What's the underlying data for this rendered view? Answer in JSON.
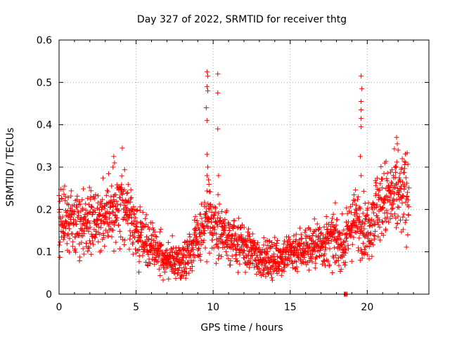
{
  "chart_data": {
    "type": "scatter",
    "title": "Day 327 of 2022, SRMTID for receiver thtg",
    "xlabel": "GPS time / hours",
    "ylabel": "SRMTID / TECUs",
    "xlim": [
      0,
      24
    ],
    "ylim": [
      0,
      0.6
    ],
    "xticks": [
      0,
      5,
      10,
      15,
      20
    ],
    "yticks": [
      0,
      0.1,
      0.2,
      0.3,
      0.4,
      0.5,
      0.6
    ],
    "xtick_labels": [
      "0",
      "5",
      "10",
      "15",
      "20"
    ],
    "ytick_labels": [
      "0",
      "0.1",
      "0.2",
      "0.3",
      "0.4",
      "0.5",
      "0.6"
    ],
    "grid": true,
    "marker": "plus",
    "color": "#ff0000",
    "trend": [
      [
        0.0,
        0.19
      ],
      [
        1.0,
        0.17
      ],
      [
        2.0,
        0.17
      ],
      [
        3.0,
        0.18
      ],
      [
        3.5,
        0.21
      ],
      [
        4.0,
        0.21
      ],
      [
        4.5,
        0.19
      ],
      [
        5.0,
        0.15
      ],
      [
        6.0,
        0.11
      ],
      [
        7.0,
        0.08
      ],
      [
        8.0,
        0.08
      ],
      [
        9.0,
        0.13
      ],
      [
        9.6,
        0.17
      ],
      [
        10.5,
        0.15
      ],
      [
        11.5,
        0.12
      ],
      [
        12.5,
        0.1
      ],
      [
        13.5,
        0.08
      ],
      [
        14.5,
        0.09
      ],
      [
        15.0,
        0.1
      ],
      [
        16.0,
        0.11
      ],
      [
        17.0,
        0.12
      ],
      [
        18.0,
        0.13
      ],
      [
        18.5,
        0.11
      ],
      [
        19.0,
        0.17
      ],
      [
        19.5,
        0.17
      ],
      [
        20.0,
        0.15
      ],
      [
        20.5,
        0.2
      ],
      [
        21.0,
        0.22
      ],
      [
        22.0,
        0.23
      ],
      [
        22.7,
        0.24
      ]
    ],
    "sample_count": 1900,
    "x_range_observed": [
      0.0,
      22.7
    ],
    "outliers": [
      [
        9.6,
        0.525
      ],
      [
        9.65,
        0.515
      ],
      [
        9.6,
        0.49
      ],
      [
        9.65,
        0.48
      ],
      [
        9.55,
        0.44
      ],
      [
        9.6,
        0.41
      ],
      [
        9.6,
        0.33
      ],
      [
        9.65,
        0.3
      ],
      [
        9.6,
        0.28
      ],
      [
        9.7,
        0.27
      ],
      [
        10.3,
        0.52
      ],
      [
        10.3,
        0.475
      ],
      [
        10.3,
        0.39
      ],
      [
        10.35,
        0.28
      ],
      [
        19.6,
        0.515
      ],
      [
        19.65,
        0.485
      ],
      [
        19.6,
        0.455
      ],
      [
        19.6,
        0.435
      ],
      [
        19.6,
        0.415
      ],
      [
        19.6,
        0.395
      ],
      [
        19.55,
        0.325
      ],
      [
        19.6,
        0.28
      ],
      [
        4.1,
        0.345
      ],
      [
        3.55,
        0.325
      ],
      [
        3.6,
        0.31
      ],
      [
        3.5,
        0.3
      ],
      [
        21.9,
        0.37
      ],
      [
        21.95,
        0.355
      ],
      [
        22.0,
        0.34
      ],
      [
        18.5,
        0.0
      ],
      [
        18.55,
        0.0
      ],
      [
        18.6,
        0.0
      ],
      [
        18.65,
        0.0
      ],
      [
        18.7,
        0.0
      ]
    ]
  }
}
